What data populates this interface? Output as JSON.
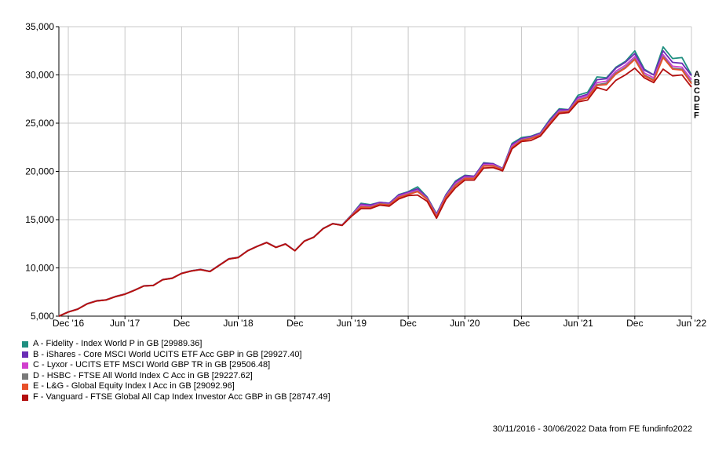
{
  "chart_data": {
    "type": "line",
    "x": [
      "2016-11-30",
      "2016-12-31",
      "2017-01-31",
      "2017-02-28",
      "2017-03-31",
      "2017-04-30",
      "2017-05-31",
      "2017-06-30",
      "2017-07-31",
      "2017-08-31",
      "2017-09-30",
      "2017-10-31",
      "2017-11-30",
      "2017-12-31",
      "2018-01-31",
      "2018-02-28",
      "2018-03-31",
      "2018-04-30",
      "2018-05-31",
      "2018-06-30",
      "2018-07-31",
      "2018-08-31",
      "2018-09-30",
      "2018-10-31",
      "2018-11-30",
      "2018-12-31",
      "2019-01-31",
      "2019-02-28",
      "2019-03-31",
      "2019-04-30",
      "2019-05-31",
      "2019-06-30",
      "2019-07-31",
      "2019-08-31",
      "2019-09-30",
      "2019-10-31",
      "2019-11-30",
      "2019-12-31",
      "2020-01-31",
      "2020-02-29",
      "2020-03-31",
      "2020-04-30",
      "2020-05-31",
      "2020-06-30",
      "2020-07-31",
      "2020-08-31",
      "2020-09-30",
      "2020-10-31",
      "2020-11-30",
      "2020-12-31",
      "2021-01-31",
      "2021-02-28",
      "2021-03-31",
      "2021-04-30",
      "2021-05-31",
      "2021-06-30",
      "2021-07-31",
      "2021-08-31",
      "2021-09-30",
      "2021-10-31",
      "2021-11-30",
      "2021-12-31",
      "2022-01-31",
      "2022-02-28",
      "2022-03-31",
      "2022-04-30",
      "2022-05-31",
      "2022-06-30"
    ],
    "series": [
      {
        "name": "A - Fidelity - Index World P in GB [29989.36]",
        "color": "#1f8f80",
        "end_label": "A",
        "values": [
          5000,
          5450,
          5750,
          6300,
          6600,
          6700,
          7050,
          7300,
          7700,
          8150,
          8200,
          8800,
          8950,
          9450,
          9700,
          9850,
          9650,
          10300,
          10950,
          11100,
          11800,
          12250,
          12650,
          12150,
          12500,
          11800,
          12800,
          13200,
          14100,
          14600,
          14450,
          15500,
          16700,
          16550,
          16800,
          16700,
          17600,
          17900,
          18400,
          17350,
          15600,
          17600,
          19000,
          19600,
          19500,
          20900,
          20800,
          20300,
          22900,
          23500,
          23650,
          24000,
          25400,
          26500,
          26400,
          27900,
          28200,
          29800,
          29700,
          30800,
          31400,
          32500,
          30600,
          30000,
          32900,
          31700,
          31800,
          29990
        ]
      },
      {
        "name": "B - iShares - Core MSCI World UCITS ETF Acc GBP in GB [29927.40]",
        "color": "#6a2db5",
        "end_label": "B",
        "values": [
          5000,
          5440,
          5740,
          6290,
          6590,
          6690,
          7040,
          7290,
          7690,
          8140,
          8190,
          8790,
          8940,
          9440,
          9690,
          9840,
          9640,
          10290,
          10940,
          11090,
          11790,
          12240,
          12640,
          12140,
          12490,
          11790,
          12790,
          13190,
          14090,
          14590,
          14440,
          15480,
          16600,
          16500,
          16800,
          16700,
          17550,
          17850,
          18200,
          17300,
          15550,
          17550,
          18900,
          19550,
          19500,
          20850,
          20800,
          20300,
          22800,
          23400,
          23600,
          23950,
          25300,
          26400,
          26400,
          27700,
          28000,
          29500,
          29600,
          30700,
          31300,
          32200,
          30500,
          30000,
          32500,
          31300,
          31200,
          29927
        ]
      },
      {
        "name": "C - Lyxor - UCITS ETF MSCI World GBP TR in GB [29506.48]",
        "color": "#d13fce",
        "end_label": "C",
        "values": [
          5000,
          5435,
          5735,
          6285,
          6585,
          6685,
          7035,
          7285,
          7685,
          8135,
          8185,
          8785,
          8935,
          9435,
          9685,
          9835,
          9635,
          10285,
          10935,
          11085,
          11785,
          12235,
          12635,
          12135,
          12485,
          11785,
          12785,
          13185,
          14085,
          14585,
          14430,
          15450,
          16500,
          16400,
          16700,
          16600,
          17450,
          17750,
          18050,
          17200,
          15450,
          17450,
          18750,
          19400,
          19400,
          20700,
          20700,
          20250,
          22650,
          23300,
          23500,
          23850,
          25150,
          26250,
          26300,
          27550,
          27850,
          29200,
          29350,
          30400,
          31000,
          31900,
          30200,
          29700,
          32100,
          30900,
          30800,
          29506
        ]
      },
      {
        "name": "D - HSBC - FTSE All World Index C Acc in GB [29227.62]",
        "color": "#7a7a7a",
        "end_label": "D",
        "values": [
          5000,
          5430,
          5730,
          6280,
          6580,
          6680,
          7030,
          7280,
          7680,
          8130,
          8180,
          8780,
          8930,
          9430,
          9680,
          9830,
          9630,
          10280,
          10930,
          11080,
          11780,
          12230,
          12630,
          12130,
          12480,
          11780,
          12780,
          13180,
          14080,
          14580,
          14420,
          15420,
          16350,
          16300,
          16650,
          16550,
          17350,
          17650,
          17950,
          17150,
          15350,
          17350,
          18600,
          19300,
          19300,
          20600,
          20600,
          20200,
          22500,
          23250,
          23450,
          23800,
          25050,
          26150,
          26250,
          27400,
          27700,
          29000,
          29150,
          30200,
          30800,
          31700,
          30000,
          29500,
          31900,
          30700,
          30600,
          29228
        ]
      },
      {
        "name": "E - L&G - Global Equity Index I Acc in GB [29092.96]",
        "color": "#e8502a",
        "end_label": "E",
        "values": [
          5000,
          5425,
          5725,
          6275,
          6575,
          6675,
          7025,
          7275,
          7675,
          8125,
          8175,
          8775,
          8925,
          9425,
          9675,
          9825,
          9625,
          10275,
          10925,
          11075,
          11775,
          12225,
          12625,
          12125,
          12475,
          11775,
          12775,
          13175,
          14075,
          14575,
          14410,
          15400,
          16300,
          16250,
          16600,
          16500,
          17300,
          17600,
          17900,
          17100,
          15300,
          17300,
          18500,
          19250,
          19250,
          20550,
          20550,
          20150,
          22450,
          23200,
          23400,
          23750,
          25000,
          26100,
          26200,
          27350,
          27650,
          28900,
          29000,
          30100,
          30700,
          31600,
          29900,
          29400,
          31800,
          30600,
          30500,
          29093
        ]
      },
      {
        "name": "F - Vanguard - FTSE Global All Cap Index Investor Acc GBP in GB [28747.49]",
        "color": "#b30f0f",
        "end_label": "F",
        "values": [
          5000,
          5420,
          5720,
          6270,
          6570,
          6670,
          7020,
          7270,
          7670,
          8120,
          8170,
          8770,
          8920,
          9420,
          9670,
          9820,
          9620,
          10270,
          10920,
          11070,
          11770,
          12220,
          12620,
          12120,
          12470,
          11770,
          12770,
          13170,
          14070,
          14570,
          14400,
          15350,
          16150,
          16150,
          16500,
          16400,
          17150,
          17500,
          17550,
          16900,
          15150,
          17100,
          18300,
          19100,
          19100,
          20350,
          20400,
          20050,
          22350,
          23100,
          23200,
          23650,
          24850,
          26000,
          26100,
          27200,
          27400,
          28700,
          28400,
          29450,
          30000,
          30700,
          29700,
          29200,
          30600,
          29900,
          30000,
          28747
        ]
      }
    ],
    "y_ticks": [
      "5,000",
      "10,000",
      "15,000",
      "20,000",
      "25,000",
      "30,000",
      "35,000"
    ],
    "x_ticks": [
      "Dec '16",
      "Jun '17",
      "Dec",
      "Jun '18",
      "Dec",
      "Jun '19",
      "Dec",
      "Jun '20",
      "Dec",
      "Jun '21",
      "Dec",
      "Jun '22"
    ],
    "ylim": [
      5000,
      35000
    ],
    "grid": true,
    "legend_position": "bottom-left"
  },
  "footer": "30/11/2016 - 30/06/2022 Data from FE fundinfo2022"
}
